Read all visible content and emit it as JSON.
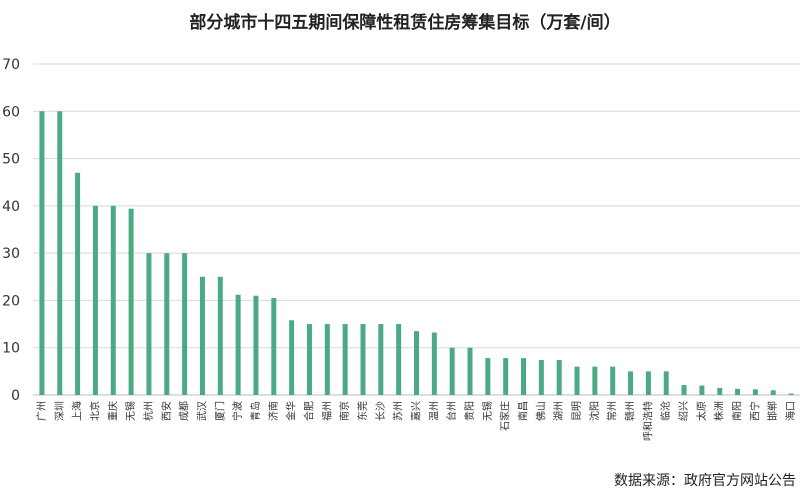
{
  "chart_data": {
    "type": "bar",
    "title": "部分城市十四五期间保障性租赁住房筹集目标（万套/间）",
    "source": "数据来源：政府官方网站公告",
    "xlabel": "",
    "ylabel": "",
    "ylim": [
      0,
      70
    ],
    "yticks": [
      0,
      10,
      20,
      30,
      40,
      50,
      60,
      70
    ],
    "grid": true,
    "bar_color": "#4aaa84",
    "categories": [
      "广州",
      "深圳",
      "上海",
      "北京",
      "重庆",
      "无锡",
      "杭州",
      "西安",
      "成都",
      "武汉",
      "厦门",
      "宁波",
      "青岛",
      "济南",
      "金华",
      "合肥",
      "福州",
      "南京",
      "东莞",
      "长沙",
      "苏州",
      "嘉兴",
      "温州",
      "台州",
      "贵阳",
      "无锡",
      "石家庄",
      "南昌",
      "佛山",
      "湖州",
      "昆明",
      "沈阳",
      "常州",
      "赣州",
      "呼和浩特",
      "临沧",
      "绍兴",
      "太原",
      "株洲",
      "南阳",
      "西宁",
      "邯郸",
      "海口"
    ],
    "values": [
      60,
      60,
      47,
      40,
      40,
      39.4,
      30,
      30,
      30,
      25,
      25,
      21.2,
      21,
      20.5,
      15.8,
      15,
      15,
      15,
      15,
      15,
      15,
      13.5,
      13.2,
      10,
      10,
      7.8,
      7.8,
      7.8,
      7.4,
      7.4,
      6,
      6,
      6,
      5,
      5,
      5,
      2.1,
      2,
      1.5,
      1.3,
      1.2,
      1,
      0.3
    ]
  }
}
